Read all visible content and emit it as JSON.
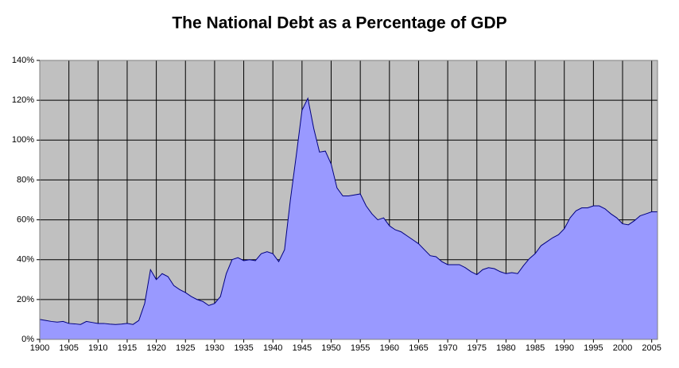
{
  "chart_data": {
    "type": "area",
    "title": "The National Debt as a Percentage of GDP",
    "x": [
      1900,
      1901,
      1902,
      1903,
      1904,
      1905,
      1906,
      1907,
      1908,
      1909,
      1910,
      1911,
      1912,
      1913,
      1914,
      1915,
      1916,
      1917,
      1918,
      1919,
      1920,
      1921,
      1922,
      1923,
      1924,
      1925,
      1926,
      1927,
      1928,
      1929,
      1930,
      1931,
      1932,
      1933,
      1934,
      1935,
      1936,
      1937,
      1938,
      1939,
      1940,
      1941,
      1942,
      1943,
      1944,
      1945,
      1946,
      1947,
      1948,
      1949,
      1950,
      1951,
      1952,
      1953,
      1954,
      1955,
      1956,
      1957,
      1958,
      1959,
      1960,
      1961,
      1962,
      1963,
      1964,
      1965,
      1966,
      1967,
      1968,
      1969,
      1970,
      1971,
      1972,
      1973,
      1974,
      1975,
      1976,
      1977,
      1978,
      1979,
      1980,
      1981,
      1982,
      1983,
      1984,
      1985,
      1986,
      1987,
      1988,
      1989,
      1990,
      1991,
      1992,
      1993,
      1994,
      1995,
      1996,
      1997,
      1998,
      1999,
      2000,
      2001,
      2002,
      2003,
      2004,
      2005,
      2006
    ],
    "values": [
      10,
      9.5,
      9,
      8.7,
      9,
      8,
      7.8,
      7.5,
      9,
      8.5,
      8,
      8,
      7.7,
      7.5,
      7.7,
      8,
      7.5,
      9.5,
      18,
      35,
      30,
      33,
      31.5,
      27,
      25,
      23.5,
      21.5,
      20,
      19,
      17,
      18,
      21.5,
      33,
      40,
      41,
      39.5,
      40,
      39.5,
      43,
      44,
      43,
      39,
      45,
      70,
      92,
      115,
      121,
      106,
      94,
      94.5,
      88,
      76,
      72,
      72,
      72.5,
      73,
      67,
      63,
      60,
      61,
      57,
      55,
      54,
      52,
      50,
      48,
      45,
      42,
      41.5,
      39,
      37.5,
      37.5,
      37.5,
      36,
      34,
      32.5,
      35,
      36,
      35.5,
      34,
      33,
      33.5,
      33,
      37,
      40.5,
      43,
      47,
      49,
      51,
      52.5,
      55.5,
      61,
      64.5,
      66,
      66,
      67,
      67,
      65.5,
      63,
      61,
      58,
      57.5,
      59.5,
      62,
      63,
      64,
      64
    ],
    "color": "#9999ff",
    "line_color": "#000080",
    "background": "#c0c0c0",
    "xlim": [
      1900,
      2006
    ],
    "xticks": [
      1900,
      1905,
      1910,
      1915,
      1920,
      1925,
      1930,
      1935,
      1940,
      1945,
      1950,
      1955,
      1960,
      1965,
      1970,
      1975,
      1980,
      1985,
      1990,
      1995,
      2000,
      2005
    ],
    "ylim": [
      0,
      140
    ],
    "yticks": [
      {
        "value": 0,
        "label": "0%"
      },
      {
        "value": 20,
        "label": "20%"
      },
      {
        "value": 40,
        "label": "40%"
      },
      {
        "value": 60,
        "label": "60%"
      },
      {
        "value": 80,
        "label": "80%"
      },
      {
        "value": 100,
        "label": "100%"
      },
      {
        "value": 120,
        "label": "120%"
      },
      {
        "value": 140,
        "label": "140%"
      }
    ],
    "grid": true
  }
}
